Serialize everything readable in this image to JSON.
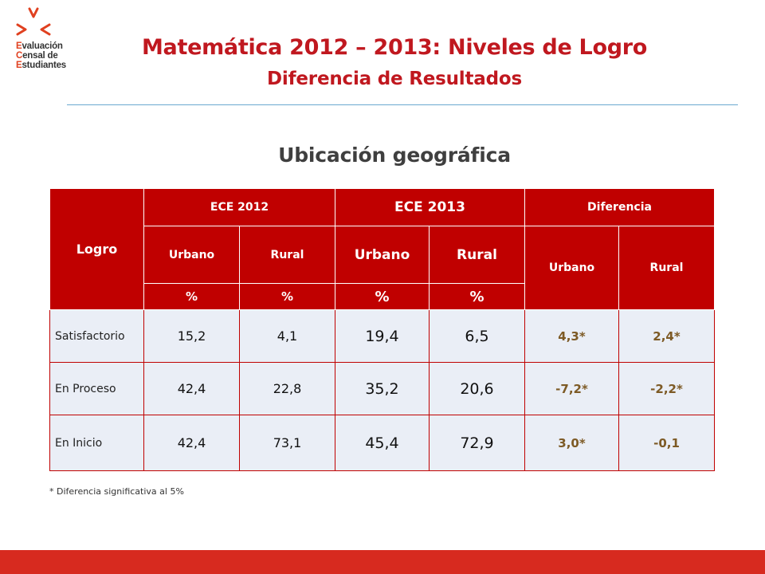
{
  "logo": {
    "line1_cap": "E",
    "line1_rest": "valuación",
    "line2_cap": "C",
    "line2_rest": "ensal de",
    "line3_cap": "E",
    "line3_rest": "studiantes"
  },
  "header": {
    "title": "Matemática 2012 – 2013: Niveles de Logro",
    "subtitle": "Diferencia de Resultados"
  },
  "section_title": "Ubicación geográfica",
  "table": {
    "logro_header": "Logro",
    "group_headers": [
      "ECE 2012",
      "ECE 2013",
      "Diferencia"
    ],
    "sub_headers": [
      "Urbano",
      "Rural",
      "Urbano",
      "Rural",
      "Urbano",
      "Rural"
    ],
    "unit_headers": [
      "%",
      "%",
      "%",
      "%"
    ],
    "rows": [
      {
        "label": "Satisfactorio",
        "values": [
          "15,2",
          "4,1",
          "19,4",
          "6,5",
          "4,3*",
          "2,4*"
        ]
      },
      {
        "label": "En Proceso",
        "values": [
          "42,4",
          "22,8",
          "35,2",
          "20,6",
          "-7,2*",
          "-2,2*"
        ]
      },
      {
        "label": "En Inicio",
        "values": [
          "42,4",
          "73,1",
          "45,4",
          "72,9",
          "3,0*",
          "-0,1"
        ]
      }
    ]
  },
  "footnote": "* Diferencia significativa al 5%",
  "colors": {
    "accent_red": "#c00000",
    "title_red": "#c0181f",
    "diff_brown": "#7d5a25",
    "cell_bg": "#eaeef6"
  }
}
